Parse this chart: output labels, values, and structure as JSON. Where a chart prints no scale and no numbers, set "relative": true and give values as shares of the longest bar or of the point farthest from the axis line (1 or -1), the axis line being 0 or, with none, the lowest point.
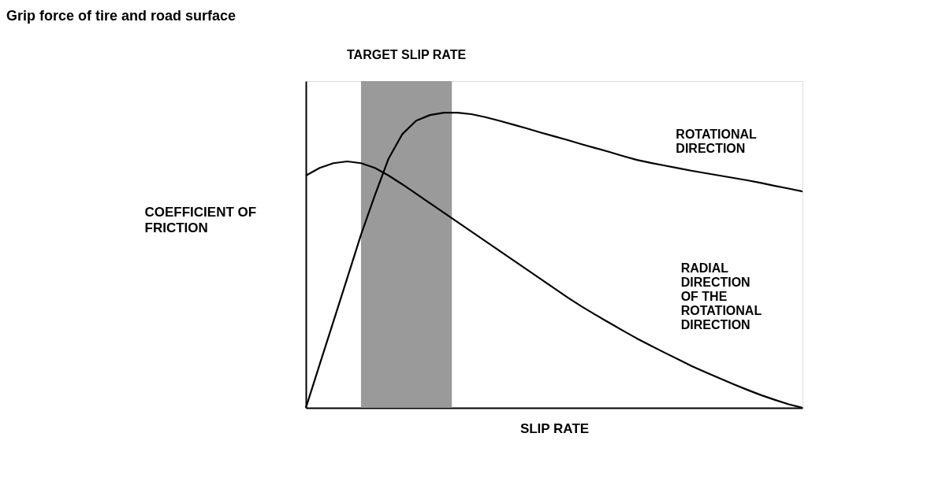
{
  "chart_data": {
    "type": "line",
    "title": "Grip force of tire and road surface",
    "xlabel": "SLIP RATE",
    "ylabel": "COEFFICIENT OF FRICTION",
    "relative": true,
    "categories": [
      null,
      null,
      null,
      null,
      null,
      null,
      null,
      null,
      null,
      null,
      null,
      null,
      null,
      null,
      null,
      null,
      null,
      null,
      null,
      null,
      null,
      null,
      null,
      null,
      null,
      null,
      null,
      null,
      null,
      null,
      null,
      null,
      null,
      null,
      null,
      null,
      null
    ],
    "series": [
      {
        "name": "ROTATIONAL DIRECTION",
        "color": "#000000",
        "values": [
          0,
          0.147,
          0.293,
          0.44,
          0.587,
          0.72,
          0.845,
          0.928,
          0.973,
          0.992,
          1,
          1,
          0.995,
          0.985,
          0.973,
          0.96,
          0.947,
          0.933,
          0.92,
          0.907,
          0.893,
          0.88,
          0.867,
          0.853,
          0.84,
          0.83,
          0.821,
          0.812,
          0.803,
          0.795,
          0.787,
          0.779,
          0.771,
          0.762,
          0.752,
          0.743,
          0.733
        ]
      },
      {
        "name": "RADIAL DIRECTION OF THE ROTATIONAL DIRECTION",
        "color": "#000000",
        "values": [
          0.787,
          0.813,
          0.829,
          0.835,
          0.829,
          0.813,
          0.787,
          0.757,
          0.725,
          0.693,
          0.661,
          0.629,
          0.597,
          0.565,
          0.533,
          0.501,
          0.469,
          0.437,
          0.405,
          0.373,
          0.343,
          0.315,
          0.288,
          0.261,
          0.235,
          0.211,
          0.187,
          0.164,
          0.141,
          0.12,
          0.1,
          0.08,
          0.061,
          0.043,
          0.027,
          0.012,
          0
        ]
      }
    ],
    "annotations": [
      "TARGET SLIP RATE"
    ],
    "grid": false,
    "legend": false,
    "tick_labels": false,
    "line_style": "solid",
    "marker": "none"
  }
}
